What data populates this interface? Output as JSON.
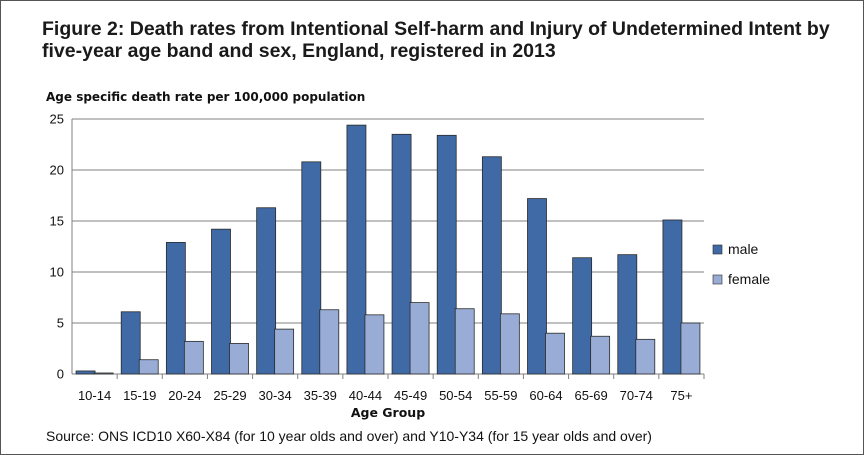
{
  "figure": {
    "title": "Figure 2: Death rates from Intentional Self-harm and Injury of Undetermined Intent by five-year age band and sex, England, registered in 2013",
    "source": "Source: ONS ICD10 X60-X84 (for 10 year olds and over) and Y10-Y34 (for 15 year olds and over)"
  },
  "chart_data": {
    "type": "bar",
    "title": "Figure 2: Death rates from Intentional Self-harm and Injury of Undetermined Intent by five-year age band and sex, England, registered in 2013",
    "ylabel": "Age specific death rate per 100,000 population",
    "xlabel": "Age Group",
    "ylim": [
      0,
      25
    ],
    "yticks": [
      0,
      5,
      10,
      15,
      20,
      25
    ],
    "grid": true,
    "legend_position": "right",
    "categories": [
      "10-14",
      "15-19",
      "20-24",
      "25-29",
      "30-34",
      "35-39",
      "40-44",
      "45-49",
      "50-54",
      "55-59",
      "60-64",
      "65-69",
      "70-74",
      "75+"
    ],
    "series": [
      {
        "name": "male",
        "color": "#3f6aa5",
        "values": [
          0.3,
          6.1,
          12.9,
          14.2,
          16.3,
          20.8,
          24.4,
          23.5,
          23.4,
          21.3,
          17.2,
          11.4,
          11.7,
          15.1
        ]
      },
      {
        "name": "female",
        "color": "#98acd6",
        "values": [
          0.1,
          1.4,
          3.2,
          3.0,
          4.4,
          6.3,
          5.8,
          7.0,
          6.4,
          5.9,
          4.0,
          3.7,
          3.4,
          5.0
        ]
      }
    ]
  }
}
